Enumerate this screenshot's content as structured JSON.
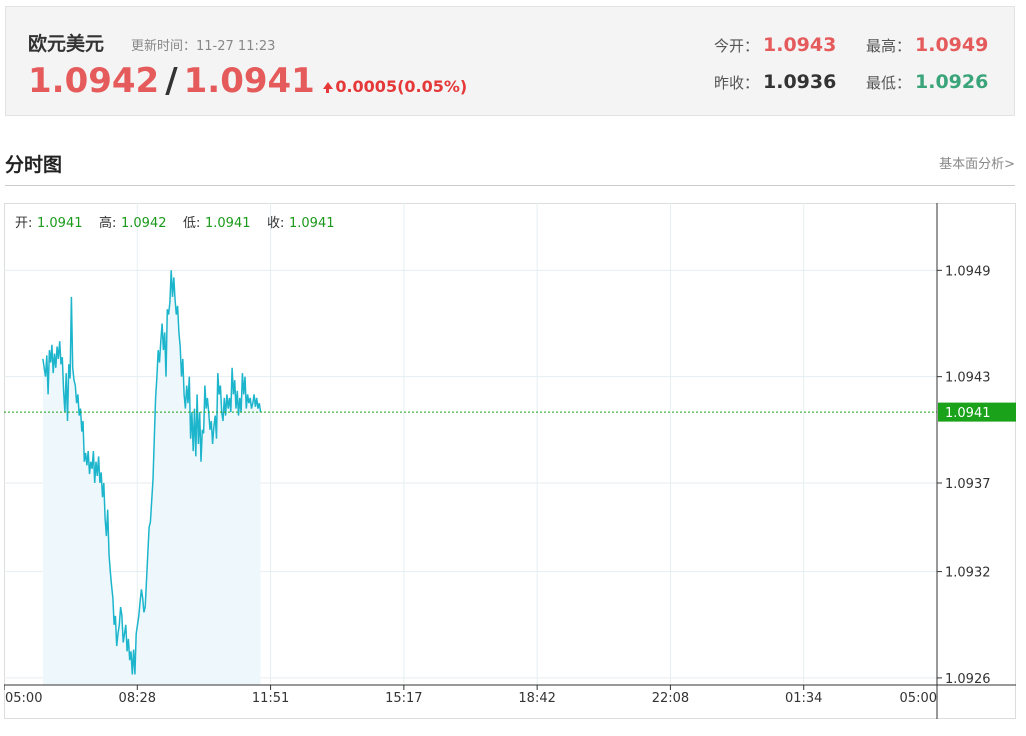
{
  "header": {
    "pair_name": "欧元美元",
    "update_label": "更新时间：",
    "update_time": "11-27 11:23",
    "bid": "1.0942",
    "separator": "/",
    "ask": "1.0941",
    "change": "0.0005(0.05%)",
    "open_label": "今开：",
    "open": "1.0943",
    "high_label": "最高：",
    "high": "1.0949",
    "prev_close_label": "昨收：",
    "prev_close": "1.0936",
    "low_label": "最低：",
    "low": "1.0926",
    "colors": {
      "up": "#e55b5b",
      "down": "#3aa57a"
    }
  },
  "section": {
    "title": "分时图",
    "link": "基本面分析>"
  },
  "chart_data": {
    "type": "area",
    "ohlc_labels": {
      "open_label": "开:",
      "open": "1.0941",
      "high_label": "高:",
      "high": "1.0942",
      "low_label": "低:",
      "low": "1.0941",
      "close_label": "收:",
      "close": "1.0941"
    },
    "x_ticks": [
      "05:00",
      "08:28",
      "11:51",
      "15:17",
      "18:42",
      "22:08",
      "01:34",
      "05:00"
    ],
    "y_ticks": [
      "1.0949",
      "1.0943",
      "1.0937",
      "1.0932",
      "1.0926"
    ],
    "y_tick_values": [
      1.0949,
      1.0943,
      1.0937,
      1.0932,
      1.0926
    ],
    "ylim": [
      1.09256,
      1.09528
    ],
    "current_price": "1.0941",
    "current_value": 1.0941,
    "line_color": "#1cb5cc",
    "fill_color": "#eef8fc",
    "current_color": "#1aa31a",
    "series_minutes": [
      60,
      62,
      64,
      66,
      68,
      70,
      72,
      74,
      76,
      78,
      80,
      82,
      84,
      86,
      88,
      90,
      92,
      94,
      96,
      98,
      100,
      102,
      104,
      106,
      108,
      110,
      112,
      114,
      116,
      118,
      120,
      122,
      124,
      126,
      128,
      130,
      132,
      134,
      136,
      138,
      140,
      142,
      144,
      146,
      148,
      150,
      152,
      154,
      156,
      158,
      160,
      162,
      164,
      166,
      168,
      170,
      172,
      174,
      176,
      178,
      180,
      182,
      184,
      186,
      188,
      190,
      192,
      194,
      196,
      198,
      200,
      202,
      204,
      206,
      208,
      210,
      212,
      214,
      216,
      218,
      220,
      222,
      224,
      226,
      228,
      230,
      232,
      234,
      236,
      238,
      240,
      242,
      244,
      246,
      248,
      250,
      252,
      254,
      256,
      258,
      260,
      262,
      264,
      266,
      268,
      270,
      272,
      274,
      276,
      278,
      280,
      282,
      284,
      286,
      288,
      290,
      292,
      294,
      296,
      298,
      300,
      302,
      304,
      306,
      308,
      310,
      312,
      314,
      316,
      318,
      320,
      322,
      324,
      326,
      328,
      330,
      332,
      334,
      336,
      338,
      340,
      342,
      344,
      346,
      348,
      350,
      352,
      354,
      356,
      358,
      360,
      362,
      364,
      366,
      368,
      370,
      372,
      374,
      376,
      378,
      380,
      382,
      384,
      386,
      388,
      390,
      392,
      394,
      396
    ],
    "series_values": [
      1.0944,
      1.09435,
      1.0943,
      1.09442,
      1.0942,
      1.09445,
      1.09438,
      1.09448,
      1.09432,
      1.09443,
      1.09435,
      1.09447,
      1.0944,
      1.0945,
      1.09437,
      1.09441,
      1.09422,
      1.0941,
      1.09432,
      1.09405,
      1.09437,
      1.09429,
      1.09475,
      1.09435,
      1.09428,
      1.09425,
      1.09415,
      1.0942,
      1.09408,
      1.09412,
      1.09399,
      1.09405,
      1.09382,
      1.09387,
      1.0938,
      1.09388,
      1.09375,
      1.09382,
      1.09378,
      1.09388,
      1.0937,
      1.09382,
      1.09374,
      1.09385,
      1.0937,
      1.09376,
      1.09362,
      1.0937,
      1.0935,
      1.0934,
      1.09355,
      1.0933,
      1.0932,
      1.09312,
      1.09305,
      1.0929,
      1.09295,
      1.09278,
      1.09285,
      1.0929,
      1.093,
      1.09295,
      1.0928,
      1.09285,
      1.0929,
      1.09275,
      1.09282,
      1.0927,
      1.09275,
      1.09262,
      1.09276,
      1.09262,
      1.09285,
      1.0929,
      1.09295,
      1.09303,
      1.0931,
      1.09305,
      1.09297,
      1.093,
      1.09315,
      1.0933,
      1.09345,
      1.09348,
      1.0936,
      1.09372,
      1.09395,
      1.09418,
      1.0943,
      1.09445,
      1.09438,
      1.0945,
      1.0946,
      1.09445,
      1.09455,
      1.0943,
      1.09468,
      1.09465,
      1.09472,
      1.0949,
      1.09475,
      1.09486,
      1.09474,
      1.09465,
      1.0947,
      1.09455,
      1.09447,
      1.0943,
      1.0944,
      1.0942,
      1.09412,
      1.09425,
      1.09415,
      1.0943,
      1.09395,
      1.0941,
      1.09388,
      1.09412,
      1.09385,
      1.0942,
      1.09392,
      1.0941,
      1.09382,
      1.094,
      1.09398,
      1.09425,
      1.09412,
      1.09418,
      1.0941,
      1.094,
      1.09405,
      1.09392,
      1.09402,
      1.09408,
      1.09395,
      1.09432,
      1.0942,
      1.09425,
      1.0941,
      1.09405,
      1.09418,
      1.09408,
      1.0942,
      1.09412,
      1.09418,
      1.0941,
      1.09435,
      1.0942,
      1.09428,
      1.09412,
      1.09422,
      1.09408,
      1.09418,
      1.0941,
      1.09432,
      1.0942,
      1.0943,
      1.09412,
      1.0942,
      1.09415,
      1.09418,
      1.09412,
      1.09415,
      1.0942,
      1.09413,
      1.09418,
      1.09412,
      1.09415,
      1.0941,
      1.09412,
      1.0941,
      1.09412,
      1.0941
    ]
  }
}
